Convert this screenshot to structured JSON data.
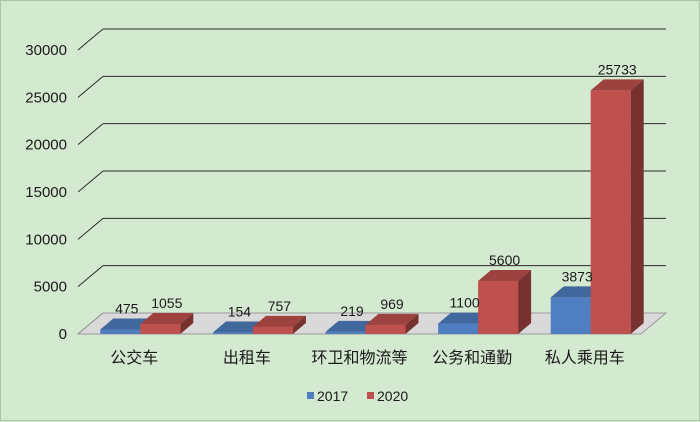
{
  "chart_data": {
    "type": "bar",
    "title": "",
    "xlabel": "",
    "ylabel": "",
    "ylim": [
      0,
      30000
    ],
    "yticks": [
      0,
      5000,
      10000,
      15000,
      20000,
      25000,
      30000
    ],
    "grid": true,
    "legend_position": "bottom",
    "three_d": true,
    "categories": [
      "公交车",
      "出租车",
      "环卫和物流等",
      "公务和通勤",
      "私人乘用车"
    ],
    "series": [
      {
        "name": "2017",
        "color": "#4f7fc0",
        "values": [
          475,
          154,
          219,
          1100,
          3873
        ]
      },
      {
        "name": "2020",
        "color": "#c0504d",
        "values": [
          1055,
          757,
          969,
          5600,
          25733
        ]
      }
    ]
  }
}
